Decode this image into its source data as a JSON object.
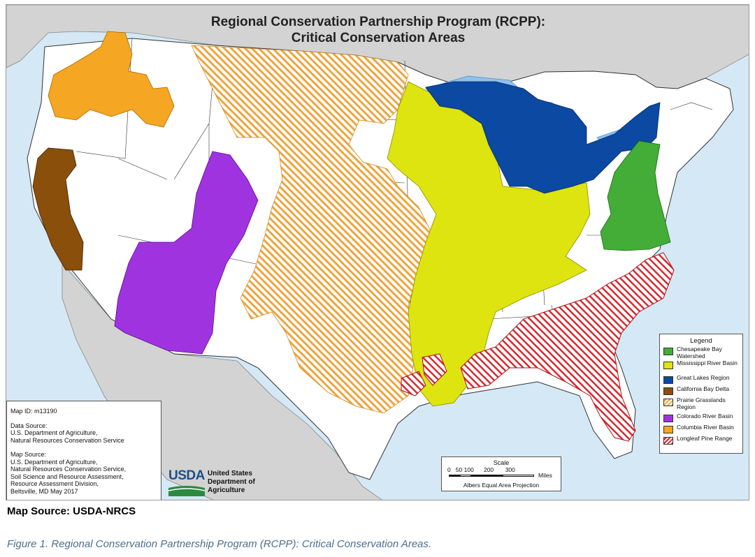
{
  "map": {
    "title_line1": "Regional Conservation Partnership Program (RCPP):",
    "title_line2": "Critical Conservation Areas",
    "colors": {
      "water": "#d4e8f5",
      "land_other": "#d3d3d3",
      "us_land": "#ffffff",
      "chesapeake": "#43ad37",
      "mississippi": "#dde40f",
      "great_lakes": "#0b49a2",
      "lakes_water": "#8fc1ec",
      "california": "#8a4f0a",
      "prairie": "#f0a43c",
      "colorado": "#a033e0",
      "columbia": "#f5a622",
      "longleaf": "#d9282f"
    },
    "legend": {
      "title": "Legend",
      "items": [
        {
          "label": "Chesapeake Bay Watershed",
          "color": "#43ad37",
          "pattern": "solid"
        },
        {
          "label": "Mississippi River Basin",
          "color": "#dde40f",
          "pattern": "solid"
        },
        {
          "label": "Great Lakes Region",
          "color": "#0b49a2",
          "pattern": "solid"
        },
        {
          "label": "California Bay Delta",
          "color": "#8a4f0a",
          "pattern": "solid"
        },
        {
          "label": "Prairie Grasslands Region",
          "color": "#f0a43c",
          "pattern": "hatch"
        },
        {
          "label": "Colorado River Basin",
          "color": "#a033e0",
          "pattern": "solid"
        },
        {
          "label": "Columbia River Basin",
          "color": "#f5a622",
          "pattern": "solid"
        },
        {
          "label": "Longleaf Pine Range",
          "color": "#d9282f",
          "pattern": "hatch"
        }
      ]
    },
    "info": {
      "map_id": "Map ID:   m13190",
      "data_source_label": "Data Source:",
      "data_source_lines": [
        "U.S. Department of Agriculture,",
        "Natural Resources Conservation Service"
      ],
      "map_source_label": "Map Source:",
      "map_source_lines": [
        "U.S. Department of Agriculture,",
        "Natural Resources Conservation Service,",
        "Soil Science and Resource Assessment,",
        "Resource Assessment Division,",
        "Beltsville, MD   May 2017"
      ]
    },
    "usda": {
      "logo": "USDA",
      "name": "United States\nDepartment of\nAgriculture"
    },
    "scale": {
      "title": "Scale",
      "ticks": "0   50 100      200       300",
      "units": "Miles",
      "projection": "Albers Equal Area Projection"
    }
  },
  "captions": {
    "map_source": "Map Source: USDA-NRCS",
    "figure": "Figure 1. Regional Conservation Partnership Program (RCPP): Critical Conservation Areas."
  }
}
